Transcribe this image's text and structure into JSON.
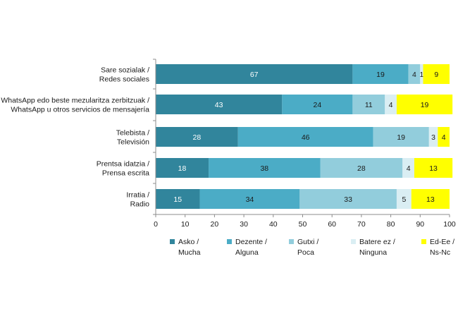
{
  "chart_data": {
    "type": "bar",
    "orientation": "horizontal",
    "stacked": true,
    "categories": [
      [
        "Sare sozialak /",
        "Redes sociales"
      ],
      [
        "WhatsApp edo beste mezularitza zerbitzuak /",
        "WhatsApp u otros servicios de mensajería"
      ],
      [
        "Telebista /",
        "Televisión"
      ],
      [
        "Prentsa idatzia /",
        "Prensa escrita"
      ],
      [
        "Irratia /",
        "Radio"
      ]
    ],
    "series": [
      {
        "name": [
          "Asko /",
          "Mucha"
        ],
        "color": "#31859c",
        "label_color": "#ffffff",
        "values": [
          67,
          43,
          28,
          18,
          15
        ]
      },
      {
        "name": [
          "Dezente /",
          "Alguna"
        ],
        "color": "#4bacc6",
        "label_color": "#1a1a1a",
        "values": [
          19,
          24,
          46,
          38,
          34
        ]
      },
      {
        "name": [
          "Gutxi /",
          "Poca"
        ],
        "color": "#92cddc",
        "label_color": "#1a1a1a",
        "values": [
          4,
          11,
          19,
          28,
          33
        ]
      },
      {
        "name": [
          "Batere ez /",
          "Ninguna"
        ],
        "color": "#daeef3",
        "label_color": "#1a1a1a",
        "values": [
          1,
          4,
          3,
          4,
          5
        ]
      },
      {
        "name": [
          "Ed-Ee /",
          "Ns-Nc"
        ],
        "color": "#ffff00",
        "label_color": "#1a1a1a",
        "values": [
          9,
          19,
          4,
          13,
          13
        ]
      }
    ],
    "xlim": [
      0,
      100
    ],
    "xticks": [
      0,
      10,
      20,
      30,
      40,
      50,
      60,
      70,
      80,
      90,
      100
    ],
    "legend_position": "bottom",
    "title": "",
    "xlabel": "",
    "ylabel": ""
  }
}
